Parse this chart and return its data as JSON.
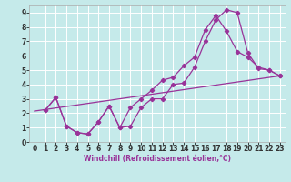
{
  "xlabel": "Windchill (Refroidissement éolien,°C)",
  "bg_color": "#c5eaea",
  "grid_color": "#ffffff",
  "line_color": "#993399",
  "xlim": [
    -0.5,
    23.5
  ],
  "ylim": [
    0,
    9.5
  ],
  "xtick_vals": [
    0,
    1,
    2,
    3,
    4,
    5,
    6,
    7,
    8,
    9,
    10,
    11,
    12,
    13,
    14,
    15,
    16,
    17,
    18,
    19,
    20,
    21,
    22,
    23
  ],
  "ytick_vals": [
    0,
    1,
    2,
    3,
    4,
    5,
    6,
    7,
    8,
    9
  ],
  "line1_x": [
    1,
    2,
    3,
    4,
    5,
    6,
    7,
    8,
    9,
    10,
    11,
    12,
    13,
    14,
    15,
    16,
    17,
    18,
    19,
    20,
    21,
    22,
    23
  ],
  "line1_y": [
    2.2,
    3.1,
    1.1,
    0.65,
    0.55,
    1.4,
    2.5,
    1.0,
    1.1,
    2.4,
    3.0,
    3.0,
    4.0,
    4.1,
    5.2,
    7.0,
    8.5,
    9.2,
    9.0,
    6.2,
    5.1,
    5.0,
    4.6
  ],
  "line2_x": [
    1,
    2,
    3,
    4,
    5,
    6,
    7,
    8,
    9,
    10,
    11,
    12,
    13,
    14,
    15,
    16,
    17,
    18,
    19,
    20,
    21,
    22,
    23
  ],
  "line2_y": [
    2.2,
    3.1,
    1.1,
    0.65,
    0.55,
    1.4,
    2.5,
    1.0,
    2.4,
    3.0,
    3.6,
    4.3,
    4.5,
    5.3,
    5.9,
    7.8,
    8.8,
    7.7,
    6.3,
    5.9,
    5.2,
    5.0,
    4.6
  ],
  "line3_x": [
    0,
    23
  ],
  "line3_y": [
    2.15,
    4.6
  ],
  "tick_fontsize": 5.5,
  "xlabel_fontsize": 5.5
}
